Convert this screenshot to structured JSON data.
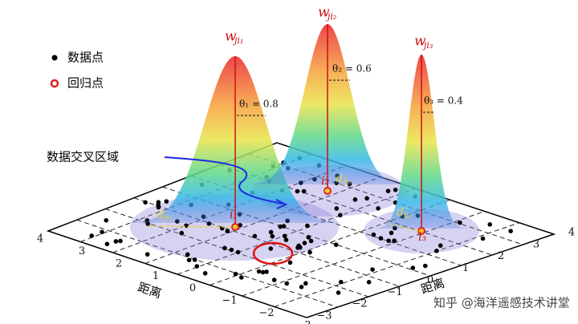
{
  "legend": [
    {
      "label": "数据点"
    },
    {
      "label": "回归点"
    }
  ],
  "annotation": "数据交叉区域",
  "peaks": [
    {
      "weight": "w",
      "weight_sub": "ji₁",
      "theta": "θ₁ = 0.8",
      "point": "i₁",
      "distance": "d",
      "distance_sub": "ji₁"
    },
    {
      "weight": "w",
      "weight_sub": "ji₂",
      "theta": "θ₂ = 0.6",
      "point": "i₂",
      "distance": "d",
      "distance_sub": "ji₂"
    },
    {
      "weight": "w",
      "weight_sub": "ji₃",
      "theta": "θ₃ = 0.4",
      "point": "i₃",
      "distance": "d",
      "distance_sub": "ji₃"
    }
  ],
  "axes": {
    "left_label": "距离",
    "right_label": "距离",
    "left_ticks": [
      "4",
      "3",
      "2",
      "1",
      "0",
      "−1",
      "−2",
      "−3"
    ],
    "right_ticks": [
      "−3",
      "−2",
      "−1",
      "0",
      "1",
      "2",
      "3",
      "4"
    ]
  },
  "watermark": "知乎 @海洋遥感技术讲堂"
}
